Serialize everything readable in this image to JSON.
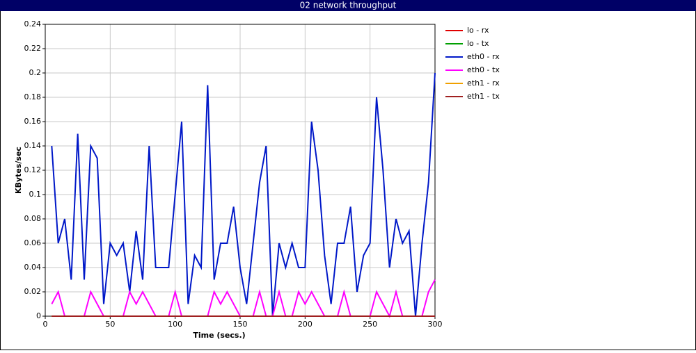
{
  "chart_data": {
    "type": "line",
    "title": "02 network throughput",
    "xlabel": "Time (secs.)",
    "ylabel": "KBytes/sec",
    "x": [
      5,
      10,
      15,
      20,
      25,
      30,
      35,
      40,
      45,
      50,
      55,
      60,
      65,
      70,
      75,
      80,
      85,
      90,
      95,
      100,
      105,
      110,
      115,
      120,
      125,
      130,
      135,
      140,
      145,
      150,
      155,
      160,
      165,
      170,
      175,
      180,
      185,
      190,
      195,
      200,
      205,
      210,
      215,
      220,
      225,
      230,
      235,
      240,
      245,
      250,
      255,
      260,
      265,
      270,
      275,
      280,
      285,
      290,
      295,
      300
    ],
    "series": [
      {
        "name": "lo - rx",
        "color": "#e00000",
        "values": [
          0,
          0,
          0,
          0,
          0,
          0,
          0,
          0,
          0,
          0,
          0,
          0,
          0,
          0,
          0,
          0,
          0,
          0,
          0,
          0,
          0,
          0,
          0,
          0,
          0,
          0,
          0,
          0,
          0,
          0,
          0,
          0,
          0,
          0,
          0,
          0,
          0,
          0,
          0,
          0,
          0,
          0,
          0,
          0,
          0,
          0,
          0,
          0,
          0,
          0,
          0,
          0,
          0,
          0,
          0,
          0,
          0,
          0,
          0,
          0
        ]
      },
      {
        "name": "lo - tx",
        "color": "#00a000",
        "values": [
          0,
          0,
          0,
          0,
          0,
          0,
          0,
          0,
          0,
          0,
          0,
          0,
          0,
          0,
          0,
          0,
          0,
          0,
          0,
          0,
          0,
          0,
          0,
          0,
          0,
          0,
          0,
          0,
          0,
          0,
          0,
          0,
          0,
          0,
          0,
          0,
          0,
          0,
          0,
          0,
          0,
          0,
          0,
          0,
          0,
          0,
          0,
          0,
          0,
          0,
          0,
          0,
          0,
          0,
          0,
          0,
          0,
          0,
          0,
          0
        ]
      },
      {
        "name": "eth0 - rx",
        "color": "#0018c8",
        "values": [
          0.14,
          0.06,
          0.08,
          0.03,
          0.15,
          0.03,
          0.14,
          0.13,
          0.01,
          0.06,
          0.05,
          0.06,
          0.02,
          0.07,
          0.03,
          0.14,
          0.04,
          0.04,
          0.04,
          0.1,
          0.16,
          0.01,
          0.05,
          0.04,
          0.19,
          0.03,
          0.06,
          0.06,
          0.09,
          0.04,
          0.01,
          0.06,
          0.11,
          0.14,
          0,
          0.06,
          0.04,
          0.06,
          0.04,
          0.04,
          0.16,
          0.12,
          0.05,
          0.01,
          0.06,
          0.06,
          0.09,
          0.02,
          0.05,
          0.06,
          0.18,
          0.12,
          0.04,
          0.08,
          0.06,
          0.07,
          0,
          0.06,
          0.11,
          0.2
        ]
      },
      {
        "name": "eth0 - tx",
        "color": "#ff00ff",
        "values": [
          0.01,
          0.02,
          0,
          0,
          0,
          0,
          0.02,
          0.01,
          0,
          0,
          0,
          0,
          0.02,
          0.01,
          0.02,
          0.01,
          0,
          0,
          0,
          0.02,
          0,
          0,
          0,
          0,
          0,
          0.02,
          0.01,
          0.02,
          0.01,
          0,
          0,
          0,
          0.02,
          0,
          0,
          0.02,
          0,
          0,
          0.02,
          0.01,
          0.02,
          0.01,
          0,
          0,
          0,
          0.02,
          0,
          0,
          0,
          0,
          0.02,
          0.01,
          0,
          0.02,
          0,
          0,
          0,
          0,
          0.02,
          0.03
        ]
      },
      {
        "name": "eth1 - rx",
        "color": "#f0a000",
        "values": [
          0,
          0,
          0,
          0,
          0,
          0,
          0,
          0,
          0,
          0,
          0,
          0,
          0,
          0,
          0,
          0,
          0,
          0,
          0,
          0,
          0,
          0,
          0,
          0,
          0,
          0,
          0,
          0,
          0,
          0,
          0,
          0,
          0,
          0,
          0,
          0,
          0,
          0,
          0,
          0,
          0,
          0,
          0,
          0,
          0,
          0,
          0,
          0,
          0,
          0,
          0,
          0,
          0,
          0,
          0,
          0,
          0,
          0,
          0,
          0
        ]
      },
      {
        "name": "eth1 - tx",
        "color": "#a02020",
        "values": [
          0,
          0,
          0,
          0,
          0,
          0,
          0,
          0,
          0,
          0,
          0,
          0,
          0,
          0,
          0,
          0,
          0,
          0,
          0,
          0,
          0,
          0,
          0,
          0,
          0,
          0,
          0,
          0,
          0,
          0,
          0,
          0,
          0,
          0,
          0,
          0,
          0,
          0,
          0,
          0,
          0,
          0,
          0,
          0,
          0,
          0,
          0,
          0,
          0,
          0,
          0,
          0,
          0,
          0,
          0,
          0,
          0,
          0,
          0,
          0
        ]
      }
    ],
    "xlim": [
      0,
      300
    ],
    "xticks": [
      0,
      50,
      100,
      150,
      200,
      250,
      300
    ],
    "ylim": [
      0,
      0.24
    ],
    "yticks": [
      0,
      0.02,
      0.04,
      0.06,
      0.08,
      0.1,
      0.12,
      0.14,
      0.16,
      0.18,
      0.2,
      0.22,
      0.24
    ],
    "grid": true,
    "legend": "right"
  }
}
